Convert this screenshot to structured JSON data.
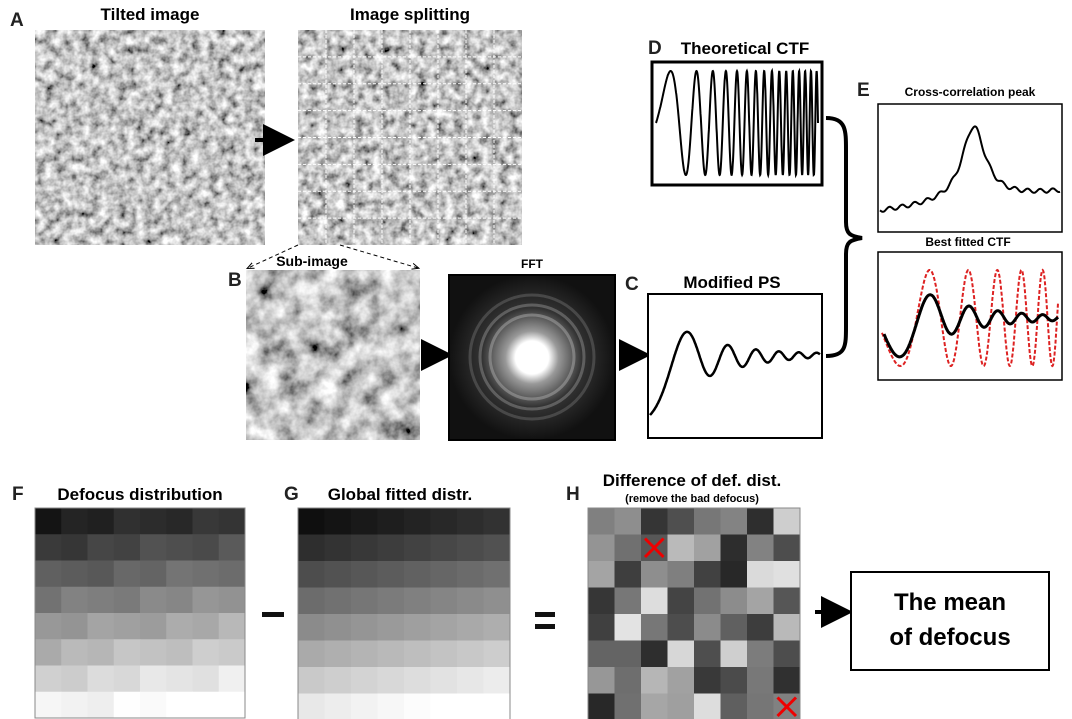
{
  "panel_a": {
    "letter": "A",
    "title": "Tilted image"
  },
  "image_splitting": {
    "title": "Image splitting"
  },
  "panel_b": {
    "letter": "B",
    "title": "Sub-image"
  },
  "fft": {
    "title": "FFT"
  },
  "panel_c": {
    "letter": "C",
    "title": "Modified PS"
  },
  "panel_d": {
    "letter": "D",
    "title": "Theoretical CTF"
  },
  "panel_e": {
    "letter": "E",
    "title": "Cross-correlation peak",
    "subtitle": "Best fitted CTF"
  },
  "panel_f": {
    "letter": "F",
    "title": "Defocus distribution"
  },
  "panel_g": {
    "letter": "G",
    "title": "Global fitted distr."
  },
  "panel_h": {
    "letter": "H",
    "title": "Difference of def. dist.",
    "subtitle": "(remove the bad defocus)"
  },
  "result": {
    "lines": [
      "The mean",
      "of defocus"
    ]
  }
}
